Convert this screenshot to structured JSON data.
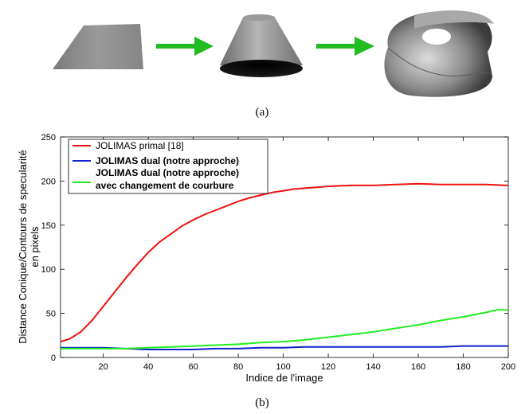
{
  "panel_a": {
    "caption": "(a)",
    "shapes": [
      "flat-sheet",
      "truncated-cone",
      "rolled-tube"
    ],
    "arrow_color": "#22bb22"
  },
  "panel_b": {
    "caption": "(b)"
  },
  "chart_data": {
    "type": "line",
    "title": "",
    "xlabel": "Indice de l'image",
    "ylabel_lines": [
      "Distance Conique/Contours de specularité",
      "en pixels"
    ],
    "xlim": [
      1,
      200
    ],
    "ylim": [
      0,
      250
    ],
    "xticks": [
      20,
      40,
      60,
      80,
      100,
      120,
      140,
      160,
      180,
      200
    ],
    "yticks": [
      0,
      50,
      100,
      150,
      200,
      250
    ],
    "grid": false,
    "legend_position": "top-left",
    "series": [
      {
        "name": "JOLIMAS primal [18]",
        "bold": false,
        "color": "#ee1111",
        "x": [
          1,
          5,
          10,
          15,
          20,
          25,
          30,
          35,
          40,
          45,
          50,
          55,
          60,
          65,
          70,
          75,
          80,
          85,
          90,
          95,
          100,
          105,
          110,
          115,
          120,
          130,
          140,
          150,
          160,
          170,
          180,
          190,
          200
        ],
        "y": [
          18,
          21,
          29,
          42,
          58,
          74,
          90,
          105,
          119,
          131,
          140,
          149,
          156,
          162,
          167,
          172,
          177,
          181,
          184,
          187,
          189,
          191,
          192,
          193,
          194,
          195,
          195,
          196,
          197,
          196,
          196,
          196,
          195
        ]
      },
      {
        "name": "JOLIMAS dual (notre approche)",
        "bold": true,
        "color": "#1122cc",
        "x": [
          1,
          10,
          20,
          30,
          40,
          50,
          60,
          70,
          80,
          90,
          100,
          110,
          120,
          130,
          140,
          150,
          160,
          170,
          180,
          190,
          200
        ],
        "y": [
          11,
          11,
          11,
          10,
          9,
          9,
          9,
          10,
          10,
          11,
          11,
          12,
          12,
          12,
          12,
          12,
          12,
          12,
          13,
          13,
          13
        ]
      },
      {
        "name_lines": [
          "JOLIMAS dual (notre approche)",
          "avec changement de courbure"
        ],
        "bold": true,
        "color": "#22ee22",
        "x": [
          1,
          10,
          20,
          30,
          40,
          50,
          60,
          70,
          80,
          90,
          100,
          110,
          120,
          130,
          140,
          150,
          160,
          170,
          180,
          190,
          195,
          200
        ],
        "y": [
          10,
          10,
          10,
          10,
          11,
          12,
          13,
          14,
          15,
          17,
          18,
          20,
          23,
          26,
          29,
          33,
          37,
          42,
          46,
          51,
          54,
          54
        ]
      }
    ]
  }
}
